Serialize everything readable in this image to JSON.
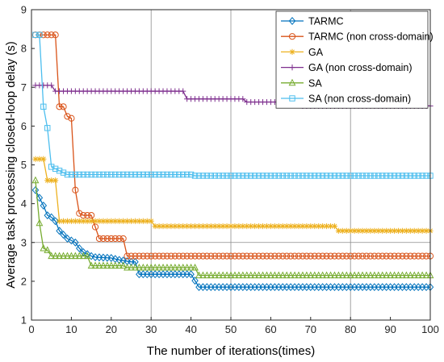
{
  "chart_data": {
    "type": "line",
    "xlabel": "The number of iterations(times)",
    "ylabel": "Average task processing closed-loop delay (s)",
    "xlim": [
      0,
      100
    ],
    "ylim": [
      1,
      9
    ],
    "xticks": [
      0,
      10,
      20,
      30,
      40,
      50,
      60,
      70,
      80,
      90,
      100
    ],
    "yticks": [
      1,
      2,
      3,
      4,
      5,
      6,
      7,
      8,
      9
    ],
    "xgrid_lines": [
      30,
      50,
      80
    ],
    "ygrid_lines": [
      3
    ],
    "legend_position": "top-right",
    "series": [
      {
        "name": "TARMC",
        "color": "#0072BD",
        "marker": "diamond",
        "points": [
          [
            1,
            4.35
          ],
          [
            2,
            4.15
          ],
          [
            3,
            3.95
          ],
          [
            4,
            3.7
          ],
          [
            5,
            3.65
          ],
          [
            6,
            3.55
          ],
          [
            7,
            3.3
          ],
          [
            8,
            3.2
          ],
          [
            9,
            3.1
          ],
          [
            10,
            3.05
          ],
          [
            11,
            3.0
          ],
          [
            12,
            2.85
          ],
          [
            13,
            2.75
          ],
          [
            14,
            2.7
          ],
          [
            15,
            2.65
          ],
          [
            16,
            2.62
          ],
          [
            20,
            2.6
          ],
          [
            22,
            2.55
          ],
          [
            25,
            2.5
          ],
          [
            26,
            2.5
          ],
          [
            27,
            2.18
          ],
          [
            40,
            2.18
          ],
          [
            42,
            1.85
          ],
          [
            100,
            1.85
          ]
        ]
      },
      {
        "name": "TARMC (non cross-domain)",
        "color": "#D95319",
        "marker": "circle",
        "points": [
          [
            1,
            8.35
          ],
          [
            6,
            8.35
          ],
          [
            7,
            6.5
          ],
          [
            8,
            6.5
          ],
          [
            9,
            6.25
          ],
          [
            10,
            6.2
          ],
          [
            11,
            4.35
          ],
          [
            12,
            3.75
          ],
          [
            13,
            3.7
          ],
          [
            15,
            3.7
          ],
          [
            16,
            3.4
          ],
          [
            17,
            3.1
          ],
          [
            23,
            3.1
          ],
          [
            24,
            2.65
          ],
          [
            100,
            2.65
          ]
        ]
      },
      {
        "name": "GA",
        "color": "#EDB120",
        "marker": "star",
        "points": [
          [
            1,
            5.15
          ],
          [
            3,
            5.15
          ],
          [
            4,
            4.6
          ],
          [
            6,
            4.6
          ],
          [
            7,
            3.55
          ],
          [
            30,
            3.55
          ],
          [
            31,
            3.42
          ],
          [
            76,
            3.42
          ],
          [
            77,
            3.3
          ],
          [
            100,
            3.3
          ]
        ]
      },
      {
        "name": "GA (non cross-domain)",
        "color": "#7E2F8E",
        "marker": "plus",
        "points": [
          [
            1,
            7.05
          ],
          [
            5,
            7.05
          ],
          [
            6,
            6.9
          ],
          [
            38,
            6.9
          ],
          [
            39,
            6.7
          ],
          [
            53,
            6.7
          ],
          [
            54,
            6.62
          ],
          [
            67,
            6.62
          ],
          [
            68,
            6.52
          ],
          [
            100,
            6.52
          ]
        ]
      },
      {
        "name": "SA",
        "color": "#77AC30",
        "marker": "triangle",
        "points": [
          [
            1,
            4.6
          ],
          [
            2,
            3.5
          ],
          [
            3,
            2.85
          ],
          [
            4,
            2.8
          ],
          [
            5,
            2.65
          ],
          [
            14,
            2.65
          ],
          [
            15,
            2.4
          ],
          [
            23,
            2.4
          ],
          [
            24,
            2.35
          ],
          [
            41,
            2.35
          ],
          [
            42,
            2.15
          ],
          [
            100,
            2.15
          ]
        ]
      },
      {
        "name": "SA (non cross-domain)",
        "color": "#4DBEEE",
        "marker": "square",
        "points": [
          [
            1,
            8.35
          ],
          [
            2,
            8.35
          ],
          [
            3,
            6.5
          ],
          [
            4,
            5.95
          ],
          [
            5,
            4.95
          ],
          [
            6,
            4.9
          ],
          [
            8,
            4.8
          ],
          [
            9,
            4.75
          ],
          [
            40,
            4.75
          ],
          [
            41,
            4.72
          ],
          [
            100,
            4.72
          ]
        ]
      }
    ]
  }
}
